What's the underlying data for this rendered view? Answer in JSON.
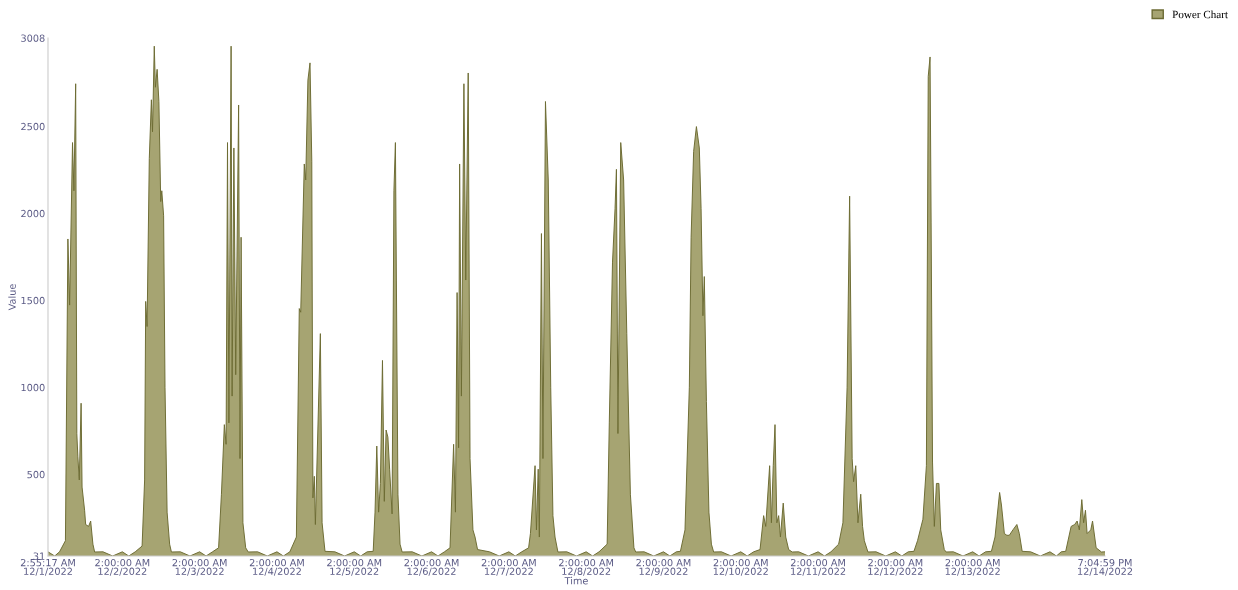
{
  "chart_data": {
    "type": "area",
    "xlabel": "Time",
    "ylabel": "Value",
    "legend": "top right",
    "grid": false,
    "xlim": [
      "2022-12-01T02:55:17",
      "2022-12-14T19:04:59"
    ],
    "ylim": [
      31,
      3008
    ],
    "yticks": [
      31,
      500,
      1000,
      1500,
      2000,
      2500,
      3008
    ],
    "xticks": [
      {
        "value": "2022-12-01T02:55:17",
        "label": "2:55:17 AM\n12/1/2022"
      },
      {
        "value": "2022-12-02T02:00",
        "label": "2:00:00 AM\n12/2/2022"
      },
      {
        "value": "2022-12-03T02:00",
        "label": "2:00:00 AM\n12/3/2022"
      },
      {
        "value": "2022-12-04T02:00",
        "label": "2:00:00 AM\n12/4/2022"
      },
      {
        "value": "2022-12-05T02:00",
        "label": "2:00:00 AM\n12/5/2022"
      },
      {
        "value": "2022-12-06T02:00",
        "label": "2:00:00 AM\n12/6/2022"
      },
      {
        "value": "2022-12-07T02:00",
        "label": "2:00:00 AM\n12/7/2022"
      },
      {
        "value": "2022-12-08T02:00",
        "label": "2:00:00 AM\n12/8/2022"
      },
      {
        "value": "2022-12-09T02:00",
        "label": "2:00:00 AM\n12/9/2022"
      },
      {
        "value": "2022-12-10T02:00",
        "label": "2:00:00 AM\n12/10/2022"
      },
      {
        "value": "2022-12-11T02:00",
        "label": "2:00:00 AM\n12/11/2022"
      },
      {
        "value": "2022-12-12T02:00",
        "label": "2:00:00 AM\n12/12/2022"
      },
      {
        "value": "2022-12-13T02:00",
        "label": "2:00:00 AM\n12/13/2022"
      },
      {
        "value": "2022-12-14T19:04:59",
        "label": "7:04:59 PM\n12/14/2022"
      }
    ],
    "series": [
      {
        "name": "Power Chart",
        "color": "#a6a472",
        "x": [
          "2022-12-01T02:55:17",
          "2022-12-01T05:00",
          "2022-12-01T06:30",
          "2022-12-01T08:20",
          "2022-12-01T09:06",
          "2022-12-01T09:38",
          "2022-12-01T10:32",
          "2022-12-01T10:58",
          "2022-12-01T11:31",
          "2022-12-01T11:52",
          "2022-12-01T12:12",
          "2022-12-01T12:38",
          "2022-12-01T13:12",
          "2022-12-01T13:30",
          "2022-12-01T14:17",
          "2022-12-01T14:37",
          "2022-12-01T15:31",
          "2022-12-01T16:10",
          "2022-12-01T16:52",
          "2022-12-01T17:24",
          "2022-12-01T20:00",
          "2022-12-01T23:00",
          "2022-12-02T02:00",
          "2022-12-02T04:00",
          "2022-12-02T06:00",
          "2022-12-02T08:08",
          "2022-12-02T08:55",
          "2022-12-02T09:15",
          "2022-12-02T09:41",
          "2022-12-02T10:22",
          "2022-12-02T11:01",
          "2022-12-02T11:22",
          "2022-12-02T11:55",
          "2022-12-02T12:16",
          "2022-12-02T12:48",
          "2022-12-02T13:21",
          "2022-12-02T13:55",
          "2022-12-02T14:15",
          "2022-12-02T14:49",
          "2022-12-02T15:15",
          "2022-12-02T15:54",
          "2022-12-02T16:41",
          "2022-12-02T17:14",
          "2022-12-02T20:00",
          "2022-12-02T23:00",
          "2022-12-03T02:00",
          "2022-12-03T04:00",
          "2022-12-03T06:00",
          "2022-12-03T07:53",
          "2022-12-03T08:46",
          "2022-12-03T09:40",
          "2022-12-03T10:13",
          "2022-12-03T10:39",
          "2022-12-03T11:05",
          "2022-12-03T11:46",
          "2022-12-03T12:05",
          "2022-12-03T12:38",
          "2022-12-03T13:12",
          "2022-12-03T14:06",
          "2022-12-03T14:32",
          "2022-12-03T14:52",
          "2022-12-03T15:26",
          "2022-12-03T16:18",
          "2022-12-03T17:05",
          "2022-12-03T20:00",
          "2022-12-03T23:00",
          "2022-12-04T02:00",
          "2022-12-04T04:00",
          "2022-12-04T06:00",
          "2022-12-04T08:02",
          "2022-12-04T08:56",
          "2022-12-04T09:23",
          "2022-12-04T10:29",
          "2022-12-04T10:56",
          "2022-12-04T11:37",
          "2022-12-04T12:16",
          "2022-12-04T12:49",
          "2022-12-04T13:10",
          "2022-12-04T13:36",
          "2022-12-04T13:56",
          "2022-12-04T15:29",
          "2022-12-04T16:01",
          "2022-12-04T16:55",
          "2022-12-04T20:00",
          "2022-12-04T23:00",
          "2022-12-05T02:00",
          "2022-12-05T04:00",
          "2022-12-05T06:00",
          "2022-12-05T07:53",
          "2022-12-05T08:27",
          "2022-12-05T09:00",
          "2022-12-05T09:34",
          "2022-12-05T10:07",
          "2022-12-05T10:46",
          "2022-12-05T11:20",
          "2022-12-05T11:53",
          "2022-12-05T12:27",
          "2022-12-05T12:59",
          "2022-12-05T13:45",
          "2022-12-05T14:19",
          "2022-12-05T14:47",
          "2022-12-05T15:05",
          "2022-12-05T15:34",
          "2022-12-05T16:13",
          "2022-12-05T16:52",
          "2022-12-05T20:00",
          "2022-12-05T23:00",
          "2022-12-06T02:00",
          "2022-12-06T04:00",
          "2022-12-06T06:00",
          "2022-12-06T07:44",
          "2022-12-06T08:51",
          "2022-12-06T09:25",
          "2022-12-06T09:56",
          "2022-12-06T10:24",
          "2022-12-06T10:43",
          "2022-12-06T11:16",
          "2022-12-06T12:03",
          "2022-12-06T12:37",
          "2022-12-06T13:23",
          "2022-12-06T13:57",
          "2022-12-06T14:51",
          "2022-12-06T15:30",
          "2022-12-06T16:17",
          "2022-12-06T20:00",
          "2022-12-06T23:00",
          "2022-12-07T02:00",
          "2022-12-07T04:00",
          "2022-12-07T06:00",
          "2022-12-07T08:08",
          "2022-12-07T08:42",
          "2022-12-07T10:08",
          "2022-12-07T10:34",
          "2022-12-07T11:07",
          "2022-12-07T11:28",
          "2022-12-07T12:07",
          "2022-12-07T12:35",
          "2022-12-07T13:22",
          "2022-12-07T14:14",
          "2022-12-07T15:00",
          "2022-12-07T15:41",
          "2022-12-07T16:20",
          "2022-12-07T17:14",
          "2022-12-07T20:00",
          "2022-12-07T23:00",
          "2022-12-08T02:00",
          "2022-12-08T04:00",
          "2022-12-08T06:00",
          "2022-12-08T08:31",
          "2022-12-08T09:11",
          "2022-12-08T10:11",
          "2022-12-08T10:58",
          "2022-12-08T11:24",
          "2022-12-08T11:52",
          "2022-12-08T12:44",
          "2022-12-08T13:38",
          "2022-12-08T14:37",
          "2022-12-08T15:44",
          "2022-12-08T16:50",
          "2022-12-08T17:23",
          "2022-12-08T20:00",
          "2022-12-08T23:00",
          "2022-12-09T02:00",
          "2022-12-09T04:00",
          "2022-12-09T06:00",
          "2022-12-09T07:16",
          "2022-12-09T08:41",
          "2022-12-09T10:02",
          "2022-12-09T10:35",
          "2022-12-09T11:22",
          "2022-12-09T12:14",
          "2022-12-09T13:08",
          "2022-12-09T13:41",
          "2022-12-09T14:15",
          "2022-12-09T14:41",
          "2022-12-09T15:20",
          "2022-12-09T16:07",
          "2022-12-09T16:53",
          "2022-12-09T17:35",
          "2022-12-09T20:00",
          "2022-12-09T23:00",
          "2022-12-10T02:00",
          "2022-12-10T04:00",
          "2022-12-10T06:00",
          "2022-12-10T07:59",
          "2022-12-10T09:06",
          "2022-12-10T09:45",
          "2022-12-10T10:58",
          "2022-12-10T11:31",
          "2022-12-10T12:05",
          "2022-12-10T12:38",
          "2022-12-10T13:12",
          "2022-12-10T13:46",
          "2022-12-10T14:19",
          "2022-12-10T15:11",
          "2022-12-10T15:58",
          "2022-12-10T16:52",
          "2022-12-10T17:58",
          "2022-12-10T20:00",
          "2022-12-10T23:00",
          "2022-12-11T02:00",
          "2022-12-11T04:00",
          "2022-12-11T06:00",
          "2022-12-11T08:23",
          "2022-12-11T09:43",
          "2022-12-11T11:01",
          "2022-12-11T11:48",
          "2022-12-11T12:35",
          "2022-12-11T13:02",
          "2022-12-11T13:42",
          "2022-12-11T14:23",
          "2022-12-11T15:15",
          "2022-12-11T15:49",
          "2022-12-11T16:22",
          "2022-12-11T17:29",
          "2022-12-11T20:00",
          "2022-12-11T23:00",
          "2022-12-12T02:00",
          "2022-12-12T04:00",
          "2022-12-12T06:00",
          "2022-12-12T07:46",
          "2022-12-12T08:53",
          "2022-12-12T10:33",
          "2022-12-12T11:38",
          "2022-12-12T12:12",
          "2022-12-12T12:46",
          "2022-12-12T13:06",
          "2022-12-12T13:32",
          "2022-12-12T14:06",
          "2022-12-12T14:45",
          "2022-12-12T15:31",
          "2022-12-12T16:05",
          "2022-12-12T17:11",
          "2022-12-12T17:45",
          "2022-12-12T20:00",
          "2022-12-12T23:00",
          "2022-12-13T02:00",
          "2022-12-13T04:00",
          "2022-12-13T06:00",
          "2022-12-13T07:49",
          "2022-12-13T08:56",
          "2022-12-13T10:22",
          "2022-12-13T10:56",
          "2022-12-13T11:50",
          "2022-12-13T12:37",
          "2022-12-13T13:23",
          "2022-12-13T14:30",
          "2022-12-13T15:43",
          "2022-12-13T16:29",
          "2022-12-13T17:22",
          "2022-12-13T20:00",
          "2022-12-13T23:00",
          "2022-12-14T02:00",
          "2022-12-14T04:00",
          "2022-12-14T05:30",
          "2022-12-14T06:53",
          "2022-12-14T08:34",
          "2022-12-14T09:40",
          "2022-12-14T10:26",
          "2022-12-14T11:07",
          "2022-12-14T11:53",
          "2022-12-14T12:27",
          "2022-12-14T13:01",
          "2022-12-14T13:32",
          "2022-12-14T14:40",
          "2022-12-14T15:13",
          "2022-12-14T16:20",
          "2022-12-14T17:59",
          "2022-12-14T19:04:59"
        ],
        "values": [
          55,
          31,
          55,
          119,
          1853,
          1473,
          2407,
          2130,
          2745,
          735,
          601,
          468,
          909,
          427,
          294,
          212,
          201,
          232,
          99,
          54,
          55,
          31,
          55,
          31,
          55,
          88,
          468,
          1494,
          1350,
          2315,
          2653,
          2469,
          2961,
          2725,
          2828,
          2643,
          2068,
          2130,
          1986,
          1001,
          283,
          99,
          54,
          55,
          31,
          55,
          31,
          55,
          78,
          386,
          786,
          673,
          2407,
          796,
          2961,
          950,
          2376,
          1073,
          2623,
          591,
          1863,
          222,
          78,
          54,
          55,
          31,
          55,
          31,
          55,
          140,
          1453,
          1432,
          2284,
          2192,
          2766,
          2865,
          2300,
          365,
          489,
          212,
          1309,
          222,
          58,
          55,
          31,
          55,
          31,
          55,
          58,
          283,
          663,
          283,
          448,
          1155,
          345,
          755,
          714,
          530,
          273,
          2130,
          2407,
          1617,
          386,
          99,
          54,
          55,
          31,
          55,
          31,
          55,
          78,
          673,
          283,
          1545,
          653,
          2284,
          950,
          2745,
          1617,
          2807,
          591,
          181,
          140,
          68,
          55,
          31,
          55,
          31,
          55,
          78,
          160,
          550,
          181,
          530,
          140,
          1884,
          591,
          2643,
          2192,
          1001,
          263,
          140,
          54,
          55,
          31,
          55,
          31,
          55,
          99,
          796,
          1720,
          2027,
          2253,
          735,
          2407,
          2192,
          1309,
          386,
          78,
          54,
          55,
          31,
          55,
          31,
          55,
          58,
          181,
          1001,
          1863,
          2356,
          2499,
          2376,
          2027,
          1412,
          1637,
          919,
          283,
          99,
          54,
          55,
          31,
          55,
          31,
          55,
          68,
          263,
          201,
          550,
          222,
          550,
          786,
          222,
          263,
          140,
          335,
          140,
          68,
          54,
          55,
          31,
          55,
          31,
          55,
          99,
          222,
          1001,
          2099,
          591,
          458,
          550,
          222,
          386,
          201,
          119,
          54,
          55,
          31,
          55,
          31,
          55,
          58,
          119,
          242,
          550,
          2787,
          2899,
          1945,
          571,
          201,
          448,
          448,
          181,
          68,
          54,
          55,
          31,
          55,
          31,
          55,
          58,
          140,
          396,
          324,
          160,
          150,
          150,
          181,
          212,
          160,
          58,
          55,
          31,
          55,
          31,
          55,
          58,
          201,
          212,
          232,
          181,
          355,
          222,
          294,
          160,
          181,
          232,
          78,
          54,
          55
        ]
      }
    ]
  }
}
